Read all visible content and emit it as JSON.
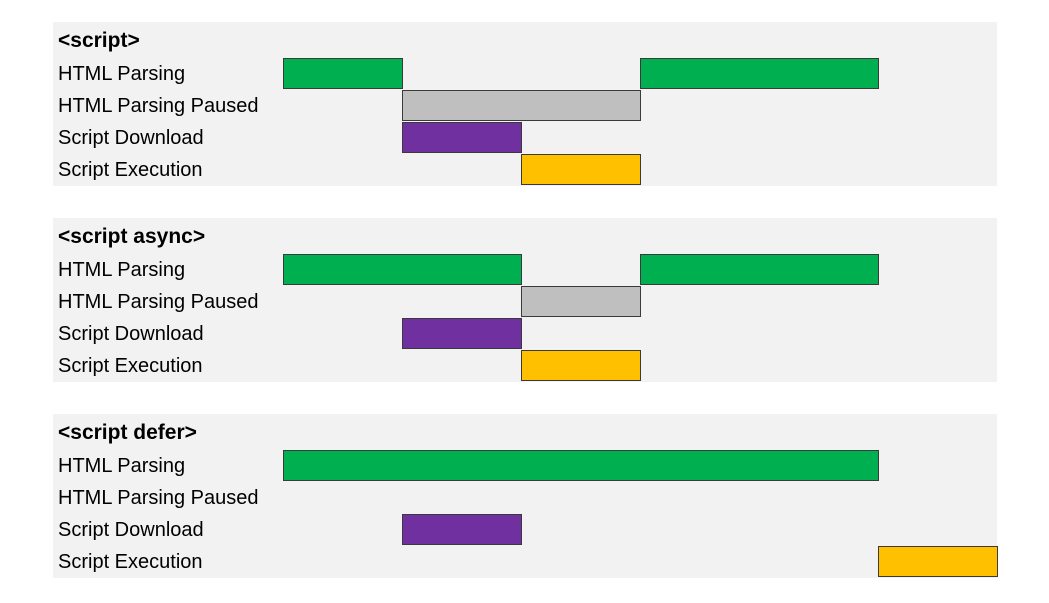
{
  "colors": {
    "panel_bg": "#f2f2f2",
    "html_parsing": "#00b050",
    "paused": "#bfbfbf",
    "download": "#7030a0",
    "execution": "#ffc000"
  },
  "rows": [
    {
      "key": "html_parsing",
      "label": "HTML Parsing"
    },
    {
      "key": "paused",
      "label": "HTML Parsing Paused"
    },
    {
      "key": "download",
      "label": "Script Download"
    },
    {
      "key": "execution",
      "label": "Script Execution"
    }
  ],
  "panels": [
    {
      "title": "<script>",
      "bars": [
        {
          "row": "html_parsing",
          "start": 0,
          "end": 1
        },
        {
          "row": "html_parsing",
          "start": 3,
          "end": 5
        },
        {
          "row": "paused",
          "start": 1,
          "end": 3
        },
        {
          "row": "download",
          "start": 1,
          "end": 2
        },
        {
          "row": "execution",
          "start": 2,
          "end": 3
        }
      ]
    },
    {
      "title": "<script async>",
      "bars": [
        {
          "row": "html_parsing",
          "start": 0,
          "end": 2
        },
        {
          "row": "html_parsing",
          "start": 3,
          "end": 5
        },
        {
          "row": "paused",
          "start": 2,
          "end": 3
        },
        {
          "row": "download",
          "start": 1,
          "end": 2
        },
        {
          "row": "execution",
          "start": 2,
          "end": 3
        }
      ]
    },
    {
      "title": "<script defer>",
      "bars": [
        {
          "row": "html_parsing",
          "start": 0,
          "end": 5
        },
        {
          "row": "download",
          "start": 1,
          "end": 2
        },
        {
          "row": "execution",
          "start": 5,
          "end": 6
        }
      ]
    }
  ]
}
